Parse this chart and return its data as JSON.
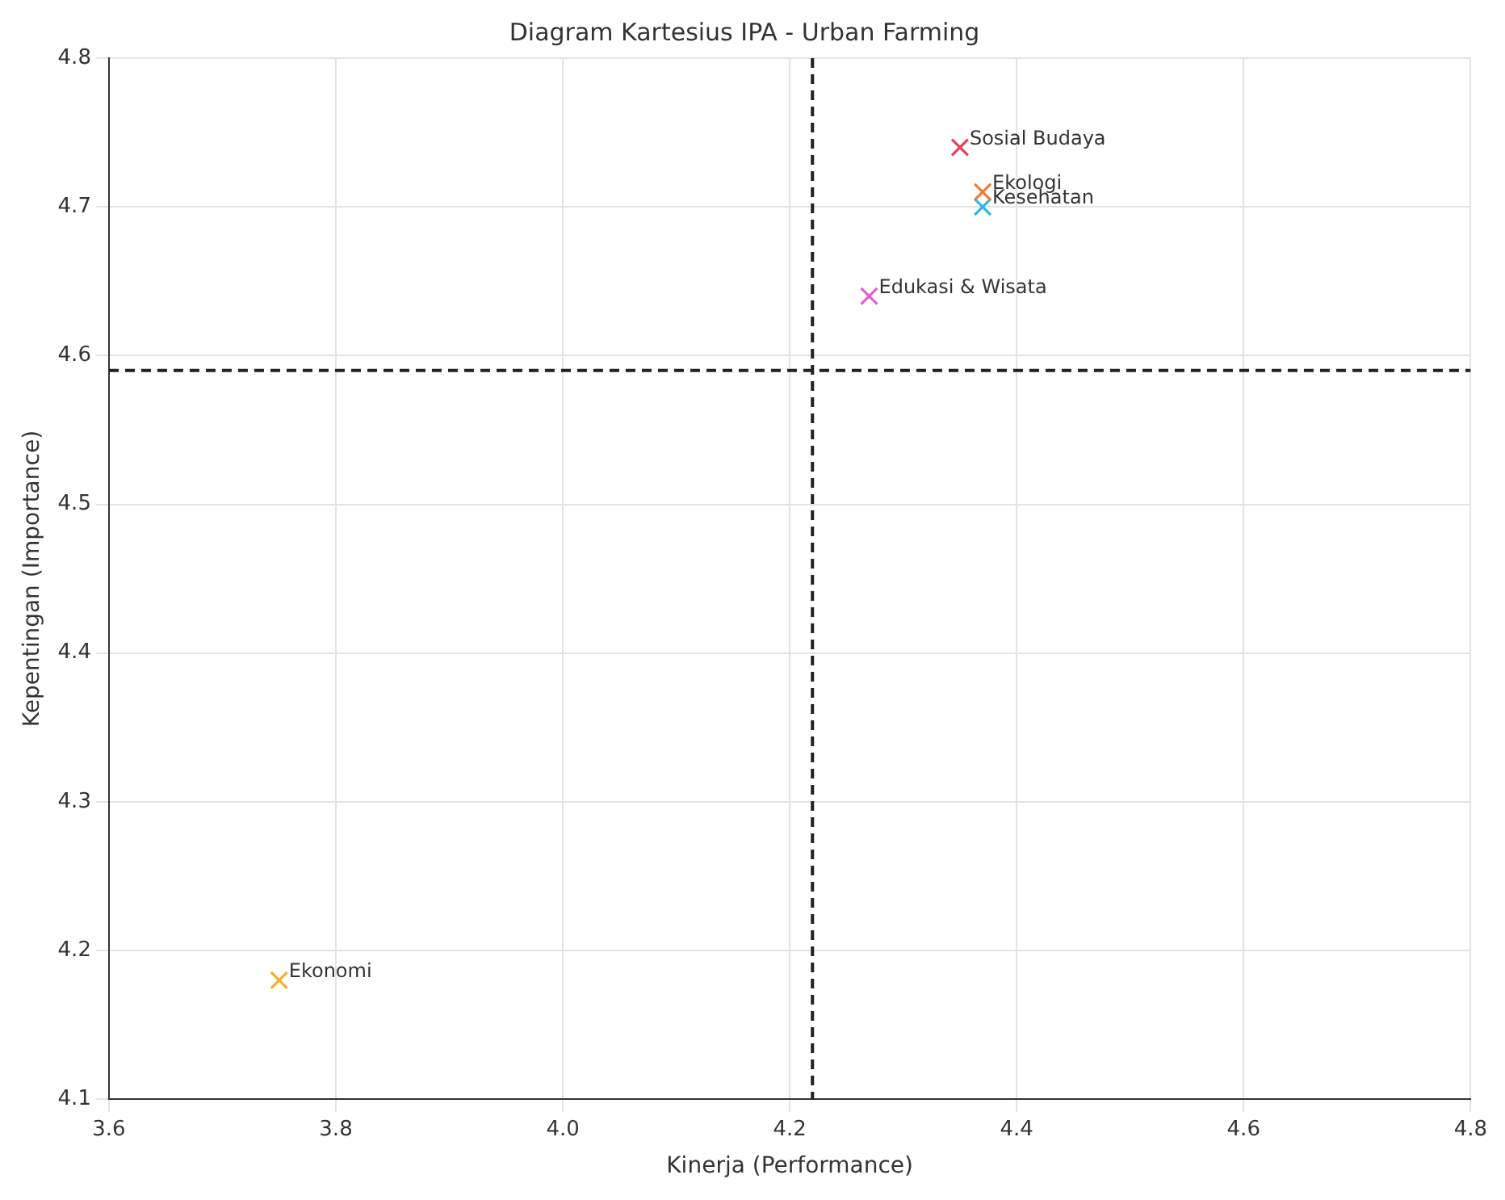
{
  "chart_data": {
    "type": "scatter",
    "title": "Diagram Kartesius IPA - Urban Farming",
    "xlabel": "Kinerja (Performance)",
    "ylabel": "Kepentingan (Importance)",
    "series": [
      {
        "name": "Sosial Budaya",
        "color": "#e0405a",
        "x": [
          4.35
        ],
        "values": [
          4.74
        ]
      },
      {
        "name": "Ekologi",
        "color": "#f07c30",
        "x": [
          4.37
        ],
        "values": [
          4.71
        ]
      },
      {
        "name": "Kesehatan",
        "color": "#33b5e5",
        "x": [
          4.37
        ],
        "values": [
          4.7
        ]
      },
      {
        "name": "Edukasi & Wisata",
        "color": "#e060c8",
        "x": [
          4.27
        ],
        "values": [
          4.64
        ]
      },
      {
        "name": "Ekonomi",
        "color": "#f0b030",
        "x": [
          3.75
        ],
        "values": [
          4.18
        ]
      }
    ],
    "xlim": [
      3.6,
      4.8
    ],
    "xticks": [
      3.6,
      3.8,
      {
        "value": 4,
        "label": "4.0"
      },
      4.2,
      4.4,
      4.6,
      4.8
    ],
    "ylim": [
      4.1,
      4.8
    ],
    "yticks": [
      4.1,
      4.2,
      4.3,
      4.4,
      4.5,
      4.6,
      4.7,
      4.8
    ],
    "ref_lines": [
      {
        "axis": "x",
        "value": 4.22,
        "color": "#222222",
        "line_style": "dashed"
      },
      {
        "axis": "y",
        "value": 4.59,
        "color": "#222222",
        "line_style": "dashed"
      }
    ],
    "grid": true,
    "legend": false,
    "marker": "cross"
  }
}
